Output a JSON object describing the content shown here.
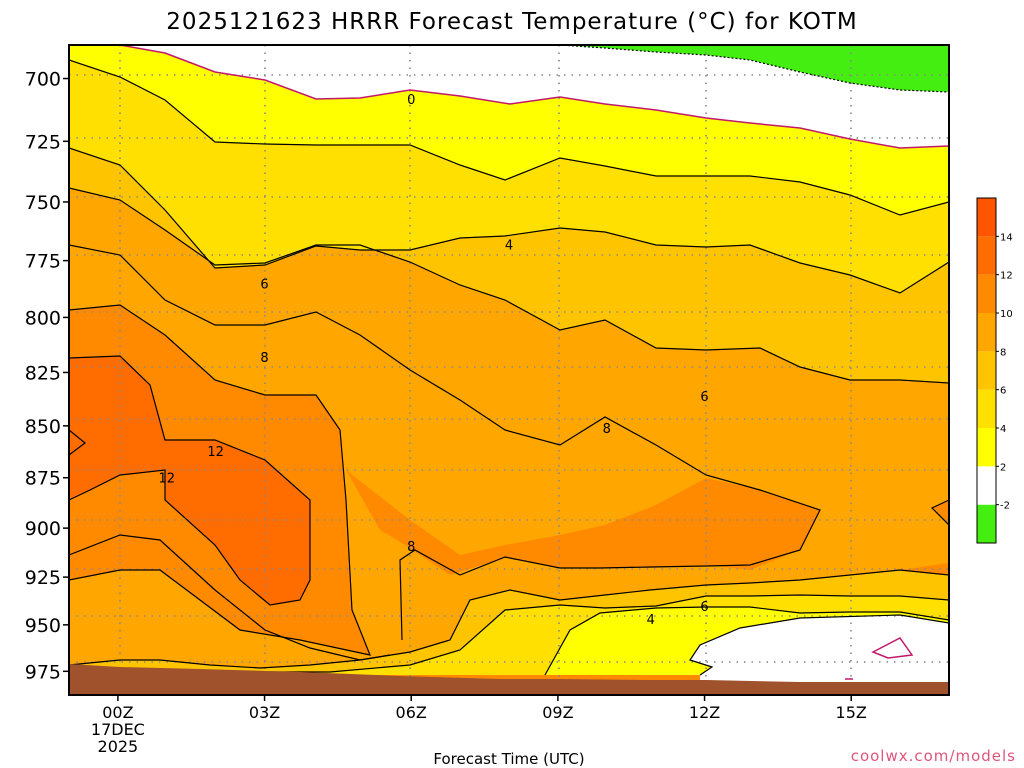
{
  "chart_data": {
    "type": "heatmap",
    "title": "2025121623 HRRR Forecast Temperature (°C) for KOTM",
    "xlabel": "Forecast Time (UTC)",
    "ylabel": "",
    "credit": "coolwx.com/models",
    "x_ticks": [
      {
        "hour": 0,
        "lines": [
          "00Z",
          "17DEC",
          "2025"
        ]
      },
      {
        "hour": 3,
        "lines": [
          "03Z"
        ]
      },
      {
        "hour": 6,
        "lines": [
          "06Z"
        ]
      },
      {
        "hour": 9,
        "lines": [
          "09Z"
        ]
      },
      {
        "hour": 12,
        "lines": [
          "12Z"
        ]
      },
      {
        "hour": 15,
        "lines": [
          "15Z"
        ]
      }
    ],
    "xlim": [
      -1,
      17
    ],
    "ylim": [
      988,
      687
    ],
    "y_ticks": [
      700,
      725,
      750,
      775,
      800,
      825,
      850,
      875,
      900,
      925,
      950,
      975
    ],
    "grid": true,
    "colorbar": {
      "ticks": [
        -2,
        2,
        4,
        6,
        8,
        10,
        12,
        14
      ],
      "bands": [
        {
          "from": -6,
          "to": -2,
          "color": "#44ee11"
        },
        {
          "from": -2,
          "to": 2,
          "color": "#ffffff"
        },
        {
          "from": 2,
          "to": 4,
          "color": "#ffff00"
        },
        {
          "from": 4,
          "to": 6,
          "color": "#ffe000"
        },
        {
          "from": 6,
          "to": 8,
          "color": "#ffc400"
        },
        {
          "from": 8,
          "to": 10,
          "color": "#ffa600"
        },
        {
          "from": 10,
          "to": 12,
          "color": "#ff8a00"
        },
        {
          "from": 12,
          "to": 14,
          "color": "#ff6d00"
        },
        {
          "from": 14,
          "to": 18,
          "color": "#ff5400"
        }
      ]
    },
    "ground_color": "#a0522d",
    "freezing_line_color": "#c2186a",
    "contour_labels": [
      {
        "text": "0",
        "hour": 6.0,
        "p": 708
      },
      {
        "text": "4",
        "hour": 8.0,
        "p": 768
      },
      {
        "text": "4",
        "hour": 10.9,
        "p": 947
      },
      {
        "text": "6",
        "hour": 3.0,
        "p": 785
      },
      {
        "text": "6",
        "hour": 12.0,
        "p": 836
      },
      {
        "text": "6",
        "hour": 12.0,
        "p": 940
      },
      {
        "text": "8",
        "hour": 3.0,
        "p": 818
      },
      {
        "text": "8",
        "hour": 10.0,
        "p": 851
      },
      {
        "text": "8",
        "hour": 6.0,
        "p": 909
      },
      {
        "text": "12",
        "hour": 2.0,
        "p": 862
      },
      {
        "text": "12",
        "hour": 1.0,
        "p": 875
      }
    ]
  }
}
